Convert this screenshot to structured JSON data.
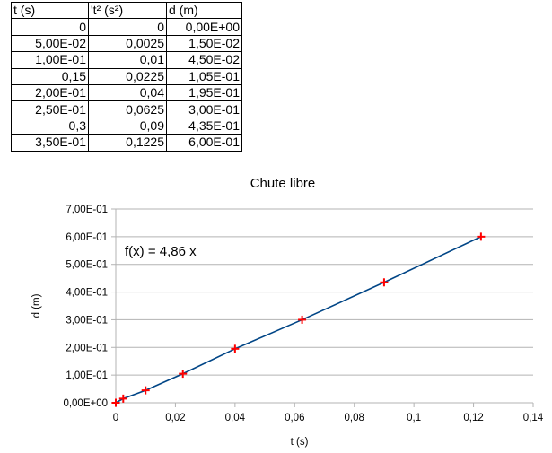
{
  "table": {
    "headers": [
      "t (s)",
      "'t² (s²)",
      "d (m)"
    ],
    "rows": [
      [
        "0",
        "0",
        "0,00E+00"
      ],
      [
        "5,00E-02",
        "0,0025",
        "1,50E-02"
      ],
      [
        "1,00E-01",
        "0,01",
        "4,50E-02"
      ],
      [
        "0,15",
        "0,0225",
        "1,05E-01"
      ],
      [
        "2,00E-01",
        "0,04",
        "1,95E-01"
      ],
      [
        "2,50E-01",
        "0,0625",
        "3,00E-01"
      ],
      [
        "0,3",
        "0,09",
        "4,35E-01"
      ],
      [
        "3,50E-01",
        "0,1225",
        "6,00E-01"
      ]
    ]
  },
  "chart_data": {
    "type": "scatter",
    "title": "Chute libre",
    "xlabel": "t (s)",
    "ylabel": "d (m)",
    "xlim": [
      0,
      0.14
    ],
    "ylim": [
      0,
      0.7
    ],
    "x_ticks": [
      0,
      0.02,
      0.04,
      0.06,
      0.08,
      0.1,
      0.12,
      0.14
    ],
    "x_tick_labels": [
      "0",
      "0,02",
      "0,04",
      "0,06",
      "0,08",
      "0,1",
      "0,12",
      "0,14"
    ],
    "y_ticks": [
      0,
      0.1,
      0.2,
      0.3,
      0.4,
      0.5,
      0.6,
      0.7
    ],
    "y_tick_labels": [
      "0,00E+00",
      "1,00E-01",
      "2,00E-01",
      "3,00E-01",
      "4,00E-01",
      "5,00E-01",
      "6,00E-01",
      "7,00E-01"
    ],
    "grid": "horizontal",
    "points": {
      "x": [
        0,
        0.0025,
        0.01,
        0.0225,
        0.04,
        0.0625,
        0.09,
        0.1225
      ],
      "y": [
        0,
        0.015,
        0.045,
        0.105,
        0.195,
        0.3,
        0.435,
        0.6
      ]
    },
    "trendline": {
      "type": "linear",
      "slope": 4.86,
      "intercept": 0,
      "equation": "f(x) = 4,86 x"
    },
    "colors": {
      "line": "#004586",
      "marker": "#ff0000",
      "grid": "#b3b3b3",
      "axis": "#b3b3b3"
    }
  }
}
